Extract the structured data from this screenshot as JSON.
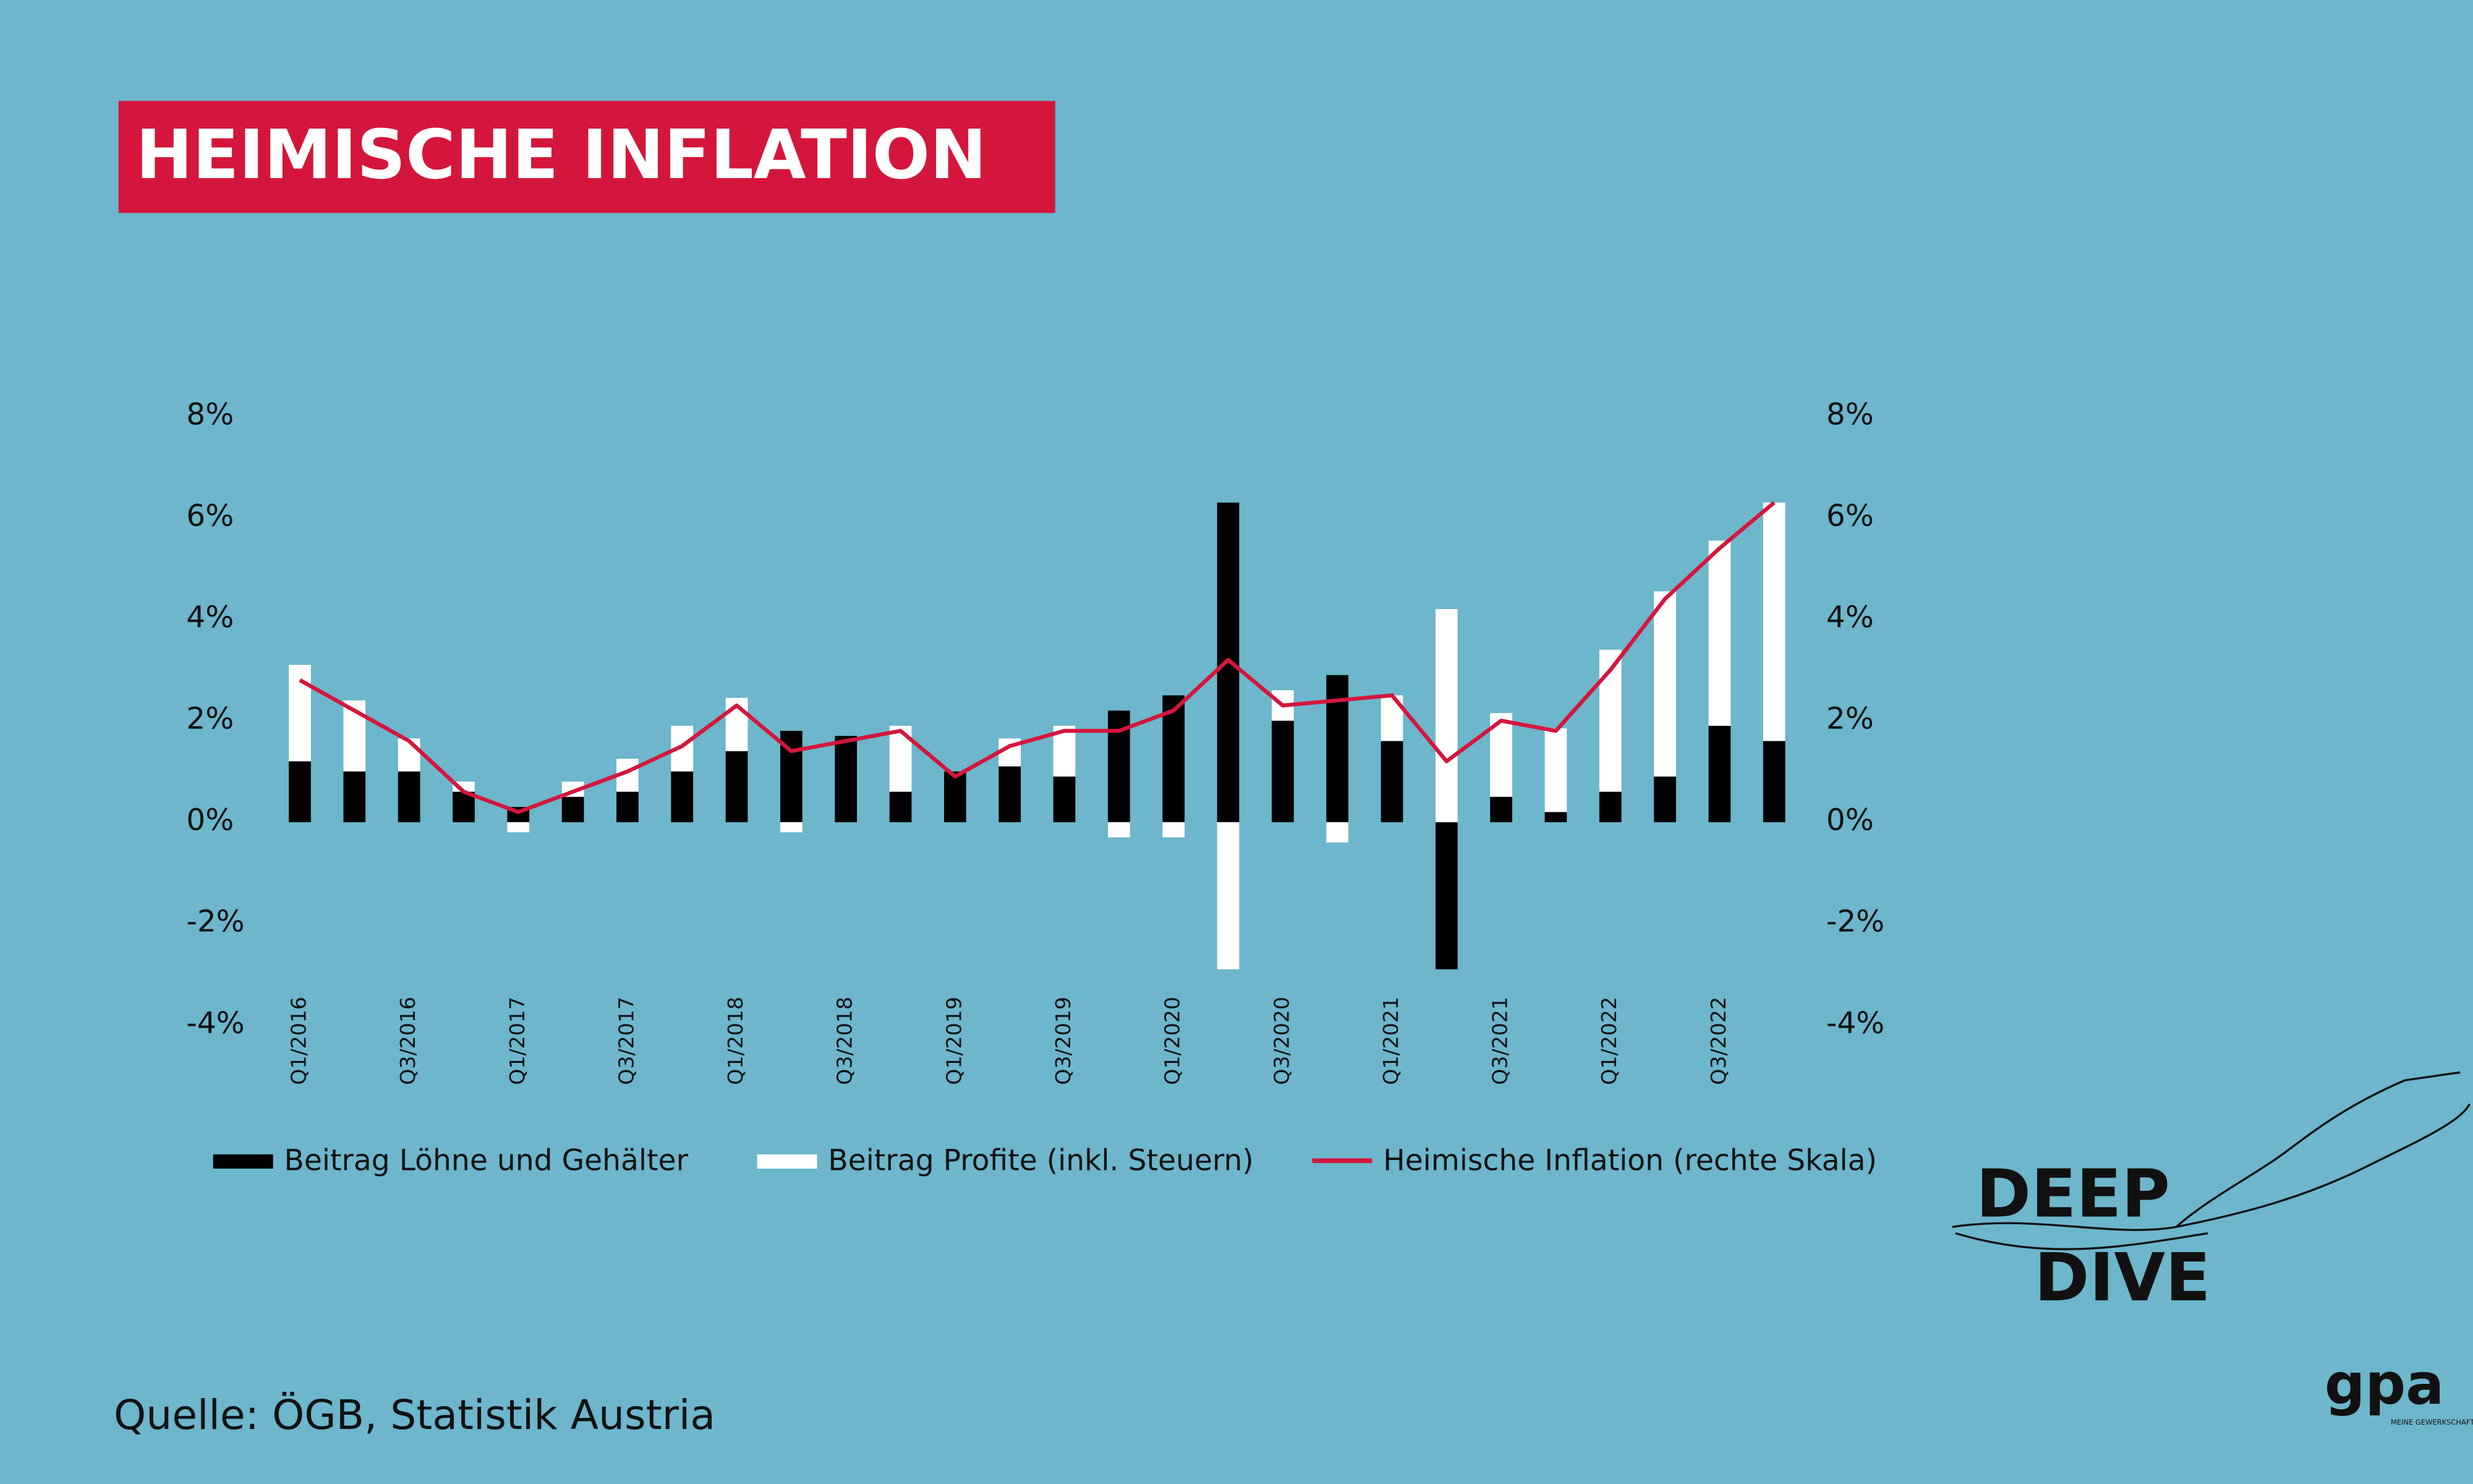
{
  "chart_data": {
    "type": "bar",
    "title": "HEIMISCHE INFLATION",
    "source": "Quelle: ÖGB, Statistik Austria",
    "categories": [
      "Q1/2016",
      null,
      "Q3/2016",
      null,
      "Q1/2017",
      null,
      "Q3/2017",
      null,
      "Q1/2018",
      null,
      "Q3/2018",
      null,
      "Q1/2019",
      null,
      "Q3/2019",
      null,
      "Q1/2020",
      null,
      "Q3/2020",
      null,
      "Q1/2021",
      null,
      "Q3/2021",
      null,
      "Q1/2022",
      null,
      "Q3/2022",
      null
    ],
    "series": [
      {
        "name": "Beitrag Löhne und Gehälter",
        "color": "#000000",
        "type": "bar",
        "values": [
          1.2,
          1.0,
          1.0,
          0.6,
          0.3,
          0.5,
          0.6,
          1.0,
          1.4,
          1.8,
          1.7,
          0.6,
          1.0,
          1.1,
          0.9,
          2.2,
          2.5,
          6.3,
          2.0,
          2.9,
          1.6,
          -2.9,
          0.5,
          0.2,
          0.6,
          0.9,
          1.9,
          1.6
        ]
      },
      {
        "name": "Beitrag Profite (inkl. Steuern)",
        "color": "#ffffff",
        "type": "bar",
        "values": [
          1.9,
          1.4,
          0.65,
          0.2,
          -0.2,
          0.3,
          0.65,
          0.9,
          1.05,
          -0.2,
          0,
          1.3,
          0,
          0.55,
          1.0,
          -0.3,
          -0.3,
          -2.9,
          0.6,
          -0.4,
          0.9,
          4.2,
          1.65,
          1.65,
          2.8,
          3.65,
          3.65,
          4.7
        ]
      },
      {
        "name": "Heimische Inflation (rechte Skala)",
        "color": "#d4163c",
        "type": "line",
        "axis": "y2",
        "values": [
          2.8,
          2.2,
          1.6,
          0.6,
          0.2,
          0.6,
          1.0,
          1.5,
          2.3,
          1.4,
          1.6,
          1.8,
          0.9,
          1.5,
          1.8,
          1.8,
          2.2,
          3.2,
          2.3,
          2.4,
          2.5,
          1.2,
          2.0,
          1.8,
          3.0,
          4.4,
          5.4,
          6.3
        ]
      }
    ],
    "ylim": [
      -4,
      8
    ],
    "yticks": [
      {
        "value": -4,
        "label": "-4%"
      },
      {
        "value": -2,
        "label": "-2%"
      },
      {
        "value": 0,
        "label": "0%"
      },
      {
        "value": 2,
        "label": "2%"
      },
      {
        "value": 4,
        "label": "4%"
      },
      {
        "value": 6,
        "label": "6%"
      },
      {
        "value": 8,
        "label": "8%"
      }
    ],
    "y2lim": [
      -4,
      8
    ],
    "y2ticks": [
      {
        "value": -4,
        "label": "-4%"
      },
      {
        "value": -2,
        "label": "-2%"
      },
      {
        "value": 0,
        "label": "0%"
      },
      {
        "value": 2,
        "label": "2%"
      },
      {
        "value": 4,
        "label": "4%"
      },
      {
        "value": 6,
        "label": "6%"
      },
      {
        "value": 8,
        "label": "8%"
      }
    ],
    "grid": false,
    "legend": "bottom"
  },
  "branding": {
    "deep": "DEEP",
    "dive": "DIVE",
    "logo": "gpa",
    "logo_sub": "MEINE GEWERKSCHAFT"
  }
}
